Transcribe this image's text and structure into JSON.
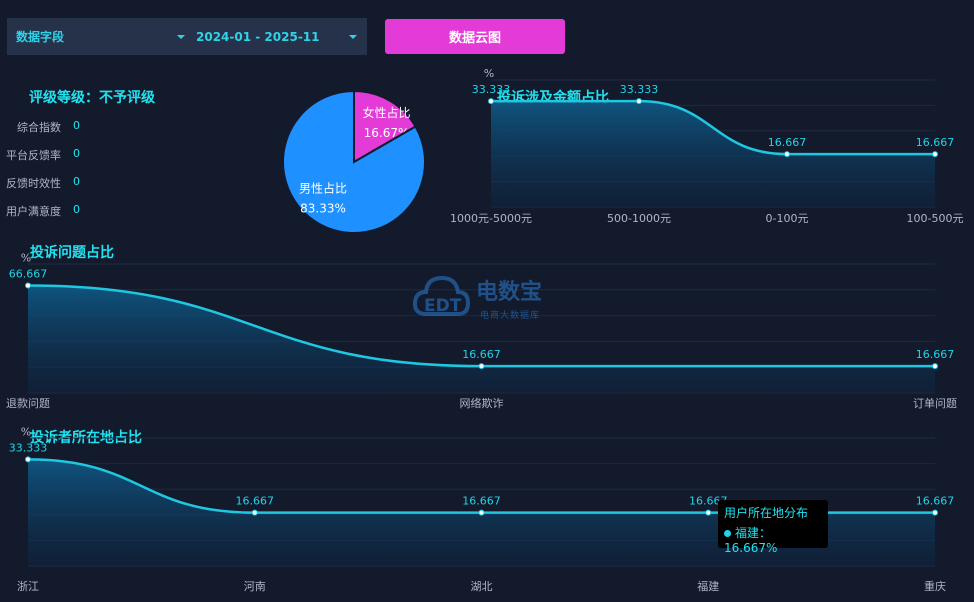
{
  "filters": {
    "field_select": "数据字段",
    "date_range": "2024-01 - 2025-11"
  },
  "toolbar": {
    "wordcloud_button": "数据云图"
  },
  "rating": {
    "title": "评级等级：不予评级",
    "metrics": [
      {
        "label": "综合指数",
        "value": "0"
      },
      {
        "label": "平台反馈率",
        "value": "0"
      },
      {
        "label": "反馈时效性",
        "value": "0"
      },
      {
        "label": "用户满意度",
        "value": "0"
      }
    ]
  },
  "watermark": {
    "logo_text": "EDT",
    "brand": "电数宝",
    "tagline": "电商大数据库"
  },
  "tooltip": {
    "title": "用户所在地分布",
    "item": "福建：16.667%"
  },
  "chart_data": [
    {
      "type": "pie",
      "id": "gender",
      "slices": [
        {
          "name": "女性占比",
          "value": 16.67,
          "label": "16.67%",
          "color": "#e43bd8"
        },
        {
          "name": "男性占比",
          "value": 83.33,
          "label": "83.33%",
          "color": "#1e90ff"
        }
      ]
    },
    {
      "type": "area",
      "id": "amount",
      "title": "投诉涉及金额占比",
      "unit": "%",
      "categories": [
        "1000元-5000元",
        "500-1000元",
        "0-100元",
        "100-500元"
      ],
      "values": [
        33.333,
        33.333,
        16.667,
        16.667
      ],
      "ylim": [
        0,
        40
      ]
    },
    {
      "type": "area",
      "id": "issue",
      "title": "投诉问题占比",
      "unit": "%",
      "categories": [
        "退款问题",
        "网络欺诈",
        "订单问题"
      ],
      "values": [
        66.667,
        16.667,
        16.667
      ],
      "ylim": [
        0,
        80
      ]
    },
    {
      "type": "area",
      "id": "region",
      "title": "投诉者所在地占比",
      "unit": "%",
      "categories": [
        "浙江",
        "河南",
        "湖北",
        "福建",
        "重庆"
      ],
      "values": [
        33.333,
        16.667,
        16.667,
        16.667,
        16.667
      ],
      "ylim": [
        0,
        40
      ]
    }
  ]
}
